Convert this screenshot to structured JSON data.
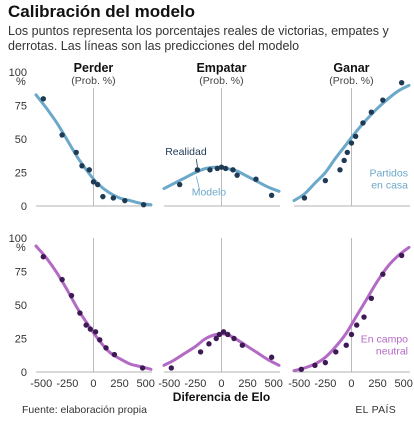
{
  "header": {
    "title": "Calibración del modelo",
    "subtitle": "Los puntos representa los porcentajes reales de victorias, empates y derrotas. Las líneas son las predicciones del modelo"
  },
  "footer": {
    "source": "Fuente: elaboración propia",
    "brand": "EL PAÍS"
  },
  "colors": {
    "home": "#6ba8c9",
    "home_dot": "#1f3a55",
    "neutral": "#b36ac4",
    "neutral_dot": "#3d1a55",
    "zero_line": "#aaaaaa"
  },
  "chart_data": {
    "type": "scatter",
    "xlabel": "Diferencia de Elo",
    "ylabel_unit": "%",
    "xlim": [
      -550,
      560
    ],
    "ylim": [
      0,
      100
    ],
    "xticks": [
      "-500",
      "-250",
      "0",
      "250",
      "500"
    ],
    "yticks": [
      "0",
      "25",
      "50",
      "75",
      "100"
    ],
    "columns": [
      {
        "title": "Perder",
        "subtitle": "(Prob. %)"
      },
      {
        "title": "Empatar",
        "subtitle": "(Prob. %)"
      },
      {
        "title": "Ganar",
        "subtitle": "(Prob. %)"
      }
    ],
    "rows": [
      {
        "label": "Partidos en casa",
        "label_lines": [
          "Partidos",
          "en casa"
        ],
        "color_key": "home",
        "annotations": {
          "points": "Realidad",
          "line": "Modelo"
        },
        "panels": [
          {
            "model": {
              "x": [
                -550,
                -450,
                -350,
                -250,
                -150,
                -50,
                50,
                150,
                250,
                350,
                450,
                550
              ],
              "y": [
                83,
                73,
                62,
                49,
                36,
                25,
                16,
                10,
                6,
                4,
                2,
                1
              ]
            },
            "points": {
              "x": [
                -480,
                -300,
                -165,
                -110,
                -40,
                0,
                40,
                90,
                190,
                300,
                480
              ],
              "y": [
                80,
                53,
                40,
                30,
                27,
                18,
                16,
                7,
                6,
                4,
                1
              ]
            }
          },
          {
            "model": {
              "x": [
                -550,
                -450,
                -350,
                -250,
                -150,
                -50,
                50,
                150,
                250,
                350,
                450,
                550
              ],
              "y": [
                13,
                17,
                21,
                25,
                28,
                29,
                28,
                26,
                22,
                18,
                14,
                11
              ]
            },
            "points": {
              "x": [
                -400,
                -230,
                -110,
                -40,
                0,
                40,
                110,
                150,
                330,
                480
              ],
              "y": [
                16,
                27,
                27,
                28,
                29,
                28,
                27,
                23,
                20,
                8
              ]
            }
          },
          {
            "model": {
              "x": [
                -550,
                -450,
                -350,
                -250,
                -150,
                -50,
                50,
                150,
                250,
                350,
                450,
                550
              ],
              "y": [
                4,
                9,
                17,
                25,
                36,
                46,
                56,
                65,
                73,
                80,
                86,
                90
              ]
            },
            "points": {
              "x": [
                -450,
                -250,
                -110,
                -70,
                -40,
                0,
                40,
                110,
                190,
                300,
                480
              ],
              "y": [
                6,
                19,
                27,
                34,
                40,
                47,
                52,
                62,
                70,
                79,
                92
              ]
            }
          }
        ]
      },
      {
        "label": "En campo neutral",
        "label_lines": [
          "En campo",
          "neutral"
        ],
        "color_key": "neutral",
        "panels": [
          {
            "model": {
              "x": [
                -550,
                -450,
                -350,
                -250,
                -150,
                -50,
                50,
                150,
                250,
                350,
                450,
                550
              ],
              "y": [
                94,
                85,
                74,
                61,
                47,
                35,
                24,
                15,
                10,
                6,
                4,
                2
              ]
            },
            "points": {
              "x": [
                -480,
                -300,
                -210,
                -130,
                -70,
                -30,
                20,
                60,
                120,
                200,
                470
              ],
              "y": [
                86,
                69,
                57,
                44,
                35,
                32,
                30,
                24,
                18,
                13,
                3
              ]
            }
          },
          {
            "model": {
              "x": [
                -550,
                -450,
                -350,
                -250,
                -150,
                -50,
                50,
                150,
                250,
                350,
                450,
                550
              ],
              "y": [
                5,
                9,
                14,
                19,
                25,
                28,
                28,
                24,
                19,
                14,
                9,
                5
              ]
            },
            "points": {
              "x": [
                -480,
                -200,
                -120,
                -50,
                -20,
                20,
                60,
                120,
                200,
                480
              ],
              "y": [
                3,
                15,
                21,
                25,
                28,
                30,
                28,
                25,
                20,
                11
              ]
            }
          },
          {
            "model": {
              "x": [
                -550,
                -450,
                -350,
                -250,
                -150,
                -50,
                50,
                150,
                250,
                350,
                450,
                550
              ],
              "y": [
                1,
                3,
                6,
                11,
                19,
                29,
                42,
                55,
                68,
                79,
                87,
                93
              ]
            },
            "points": {
              "x": [
                -480,
                -350,
                -250,
                -150,
                -50,
                0,
                50,
                120,
                190,
                300,
                480
              ],
              "y": [
                2,
                5,
                7,
                15,
                20,
                28,
                35,
                41,
                55,
                73,
                87
              ]
            }
          }
        ]
      }
    ]
  }
}
